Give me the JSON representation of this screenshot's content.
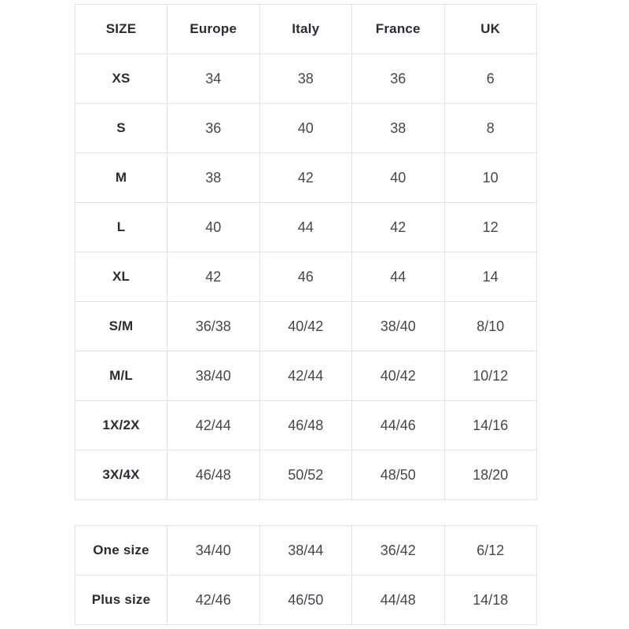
{
  "colors": {
    "border-color": "#e2e2e4",
    "label-color": "#2b2b33",
    "value-color": "#46464e",
    "page-bg": "#ffffff"
  },
  "size_chart": {
    "headers": [
      "SIZE",
      "Europe",
      "Italy",
      "France",
      "UK"
    ],
    "rows": [
      {
        "size": "XS",
        "europe": "34",
        "italy": "38",
        "france": "36",
        "uk": "6"
      },
      {
        "size": "S",
        "europe": "36",
        "italy": "40",
        "france": "38",
        "uk": "8"
      },
      {
        "size": "M",
        "europe": "38",
        "italy": "42",
        "france": "40",
        "uk": "10"
      },
      {
        "size": "L",
        "europe": "40",
        "italy": "44",
        "france": "42",
        "uk": "12"
      },
      {
        "size": "XL",
        "europe": "42",
        "italy": "46",
        "france": "44",
        "uk": "14"
      },
      {
        "size": "S/M",
        "europe": "36/38",
        "italy": "40/42",
        "france": "38/40",
        "uk": "8/10"
      },
      {
        "size": "M/L",
        "europe": "38/40",
        "italy": "42/44",
        "france": "40/42",
        "uk": "10/12"
      },
      {
        "size": "1X/2X",
        "europe": "42/44",
        "italy": "46/48",
        "france": "44/46",
        "uk": "14/16"
      },
      {
        "size": "3X/4X",
        "europe": "46/48",
        "italy": "50/52",
        "france": "48/50",
        "uk": "18/20"
      }
    ]
  },
  "special_sizes": {
    "rows": [
      {
        "size": "One size",
        "europe": "34/40",
        "italy": "38/44",
        "france": "36/42",
        "uk": "6/12"
      },
      {
        "size": "Plus size",
        "europe": "42/46",
        "italy": "46/50",
        "france": "44/48",
        "uk": "14/18"
      }
    ]
  }
}
